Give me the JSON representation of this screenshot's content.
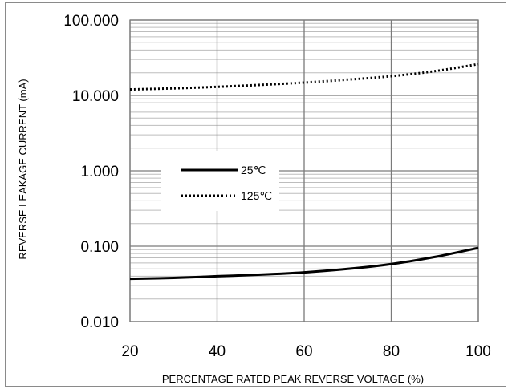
{
  "chart_data": {
    "type": "line",
    "title": "",
    "xlabel": "PERCENTAGE RATED PEAK REVERSE VOLTAGE (%)",
    "ylabel": "REVERSE LEAKAGE CURRENT (mA)",
    "x_scale": "linear",
    "y_scale": "log",
    "xlim": [
      20,
      100
    ],
    "ylim": [
      0.01,
      100
    ],
    "x_ticks": [
      "20",
      "40",
      "60",
      "80",
      "100"
    ],
    "y_ticks": [
      "100.000",
      "10.000",
      "1.000",
      "0.100",
      "0.010"
    ],
    "grid": true,
    "legend_position": "center-left",
    "series": [
      {
        "name": "25℃",
        "style": "solid",
        "color": "#000000",
        "x": [
          20,
          30,
          40,
          50,
          60,
          70,
          80,
          90,
          100
        ],
        "y": [
          0.037,
          0.038,
          0.04,
          0.042,
          0.045,
          0.05,
          0.058,
          0.072,
          0.095
        ]
      },
      {
        "name": "125℃",
        "style": "dotted",
        "color": "#000000",
        "x": [
          20,
          30,
          40,
          50,
          60,
          70,
          80,
          90,
          100
        ],
        "y": [
          12.0,
          12.4,
          13.0,
          13.8,
          14.8,
          16.2,
          18.0,
          21.0,
          26.0
        ]
      }
    ]
  }
}
